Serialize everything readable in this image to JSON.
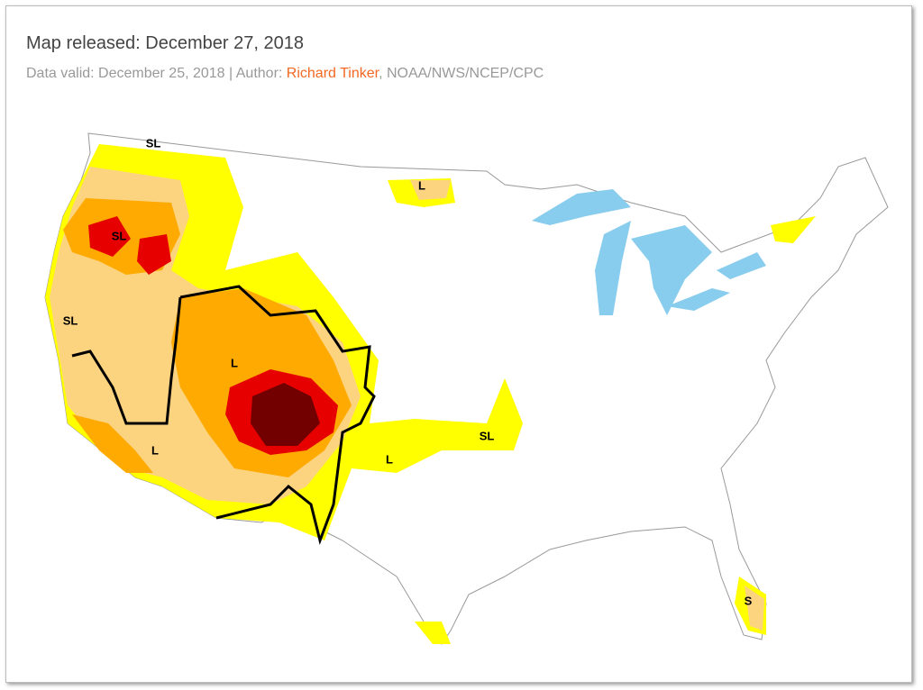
{
  "header": {
    "title": "Map released: December 27, 2018",
    "data_valid": "Data valid: December 25, 2018",
    "separator": "|",
    "author_label": "Author:",
    "author": "Richard Tinker",
    "affiliation": ", NOAA/NWS/NCEP/CPC"
  },
  "map": {
    "labels": [
      "SL",
      "SL",
      "L",
      "SL",
      "L",
      "L",
      "SL",
      "L",
      "S"
    ]
  }
}
